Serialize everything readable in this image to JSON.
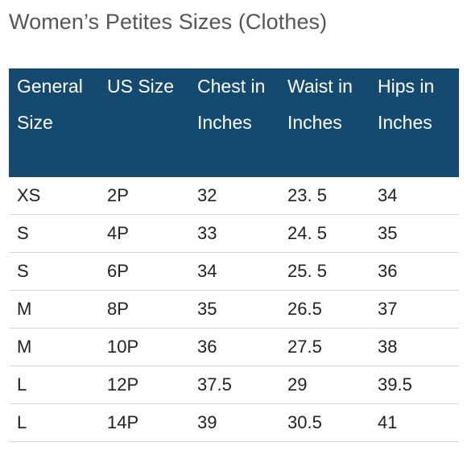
{
  "title": "Women’s Petites Sizes (Clothes)",
  "colors": {
    "header_background": "#154a70",
    "header_text": "#ffffff",
    "title_text": "#555555",
    "row_divider": "#d6d6d6"
  },
  "table": {
    "headers": [
      "General Size",
      "US Size",
      "Chest in Inches",
      "Waist in Inches",
      "Hips in Inches"
    ],
    "rows": [
      [
        "XS",
        "2P",
        "32",
        "23. 5",
        "34"
      ],
      [
        "S",
        "4P",
        "33",
        "24. 5",
        "35"
      ],
      [
        "S",
        "6P",
        "34",
        "25. 5",
        "36"
      ],
      [
        "M",
        "8P",
        "35",
        "26.5",
        "37"
      ],
      [
        "M",
        "10P",
        "36",
        "27.5",
        "38"
      ],
      [
        "L",
        "12P",
        "37.5",
        "29",
        "39.5"
      ],
      [
        "L",
        "14P",
        "39",
        "30.5",
        "41"
      ]
    ]
  }
}
